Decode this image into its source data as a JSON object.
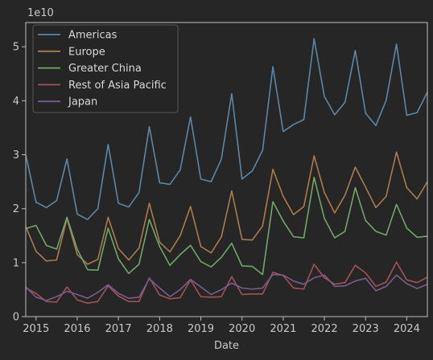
{
  "chart_data": {
    "type": "line",
    "xlabel": "Date",
    "ylabel": "",
    "y_scale_label": "1e10",
    "xlim": [
      2014.75,
      2024.5
    ],
    "ylim": [
      0,
      5.45
    ],
    "yticks": [
      0,
      1,
      2,
      3,
      4,
      5
    ],
    "xticks": [
      2015,
      2016,
      2017,
      2018,
      2019,
      2020,
      2021,
      2022,
      2023,
      2024
    ],
    "ytick_labels": [
      "0",
      "1",
      "2",
      "3",
      "4",
      "5"
    ],
    "xtick_labels": [
      "2015",
      "2016",
      "2017",
      "2018",
      "2019",
      "2020",
      "2021",
      "2022",
      "2023",
      "2024"
    ],
    "legend_position": "top-left",
    "grid": false,
    "x": [
      2014.75,
      2015.0,
      2015.25,
      2015.5,
      2015.75,
      2016.0,
      2016.25,
      2016.5,
      2016.75,
      2017.0,
      2017.25,
      2017.5,
      2017.75,
      2018.0,
      2018.25,
      2018.5,
      2018.75,
      2019.0,
      2019.25,
      2019.5,
      2019.75,
      2020.0,
      2020.25,
      2020.5,
      2020.75,
      2021.0,
      2021.25,
      2021.5,
      2021.75,
      2022.0,
      2022.25,
      2022.5,
      2022.75,
      2023.0,
      2023.25,
      2023.5,
      2023.75,
      2024.0,
      2024.25,
      2024.5
    ],
    "series": [
      {
        "name": "Americas",
        "color": "#5b87a8",
        "values": [
          3.0,
          2.12,
          2.02,
          2.15,
          2.92,
          1.9,
          1.8,
          2.0,
          3.19,
          2.1,
          2.03,
          2.3,
          3.52,
          2.48,
          2.45,
          2.72,
          3.7,
          2.55,
          2.5,
          2.92,
          4.13,
          2.55,
          2.7,
          3.08,
          4.63,
          3.43,
          3.56,
          3.65,
          5.15,
          4.08,
          3.74,
          3.97,
          4.93,
          3.77,
          3.54,
          4.01,
          5.05,
          3.73,
          3.78,
          4.16
        ]
      },
      {
        "name": "Europe",
        "color": "#ad7a4a",
        "values": [
          1.67,
          1.21,
          1.03,
          1.05,
          1.82,
          1.15,
          0.97,
          1.06,
          1.84,
          1.26,
          1.05,
          1.27,
          2.1,
          1.38,
          1.2,
          1.5,
          2.04,
          1.3,
          1.18,
          1.48,
          2.33,
          1.43,
          1.42,
          1.68,
          2.73,
          2.23,
          1.89,
          2.04,
          2.98,
          2.3,
          1.92,
          2.25,
          2.77,
          2.4,
          2.02,
          2.23,
          3.05,
          2.39,
          2.18,
          2.5
        ]
      },
      {
        "name": "Greater China",
        "color": "#6fa766",
        "values": [
          1.63,
          1.69,
          1.32,
          1.25,
          1.84,
          1.25,
          0.87,
          0.86,
          1.64,
          1.07,
          0.8,
          0.97,
          1.8,
          1.3,
          0.95,
          1.15,
          1.32,
          1.02,
          0.92,
          1.1,
          1.36,
          0.94,
          0.93,
          0.78,
          2.13,
          1.77,
          1.48,
          1.46,
          2.58,
          1.82,
          1.46,
          1.58,
          2.39,
          1.78,
          1.58,
          1.51,
          2.08,
          1.64,
          1.47,
          1.49
        ]
      },
      {
        "name": "Rest of Asia Pacific",
        "color": "#a25252",
        "values": [
          0.53,
          0.43,
          0.28,
          0.27,
          0.55,
          0.31,
          0.25,
          0.28,
          0.57,
          0.38,
          0.28,
          0.28,
          0.72,
          0.4,
          0.33,
          0.35,
          0.68,
          0.37,
          0.36,
          0.37,
          0.74,
          0.41,
          0.42,
          0.42,
          0.82,
          0.76,
          0.53,
          0.51,
          0.97,
          0.72,
          0.6,
          0.63,
          0.95,
          0.81,
          0.56,
          0.64,
          1.01,
          0.68,
          0.63,
          0.73
        ]
      },
      {
        "name": "Japan",
        "color": "#7a5b8f",
        "values": [
          0.55,
          0.36,
          0.3,
          0.37,
          0.47,
          0.41,
          0.34,
          0.45,
          0.59,
          0.43,
          0.34,
          0.36,
          0.7,
          0.53,
          0.37,
          0.5,
          0.69,
          0.55,
          0.41,
          0.5,
          0.62,
          0.53,
          0.51,
          0.53,
          0.78,
          0.77,
          0.66,
          0.6,
          0.72,
          0.77,
          0.56,
          0.57,
          0.66,
          0.71,
          0.48,
          0.56,
          0.77,
          0.61,
          0.52,
          0.6
        ]
      }
    ]
  }
}
